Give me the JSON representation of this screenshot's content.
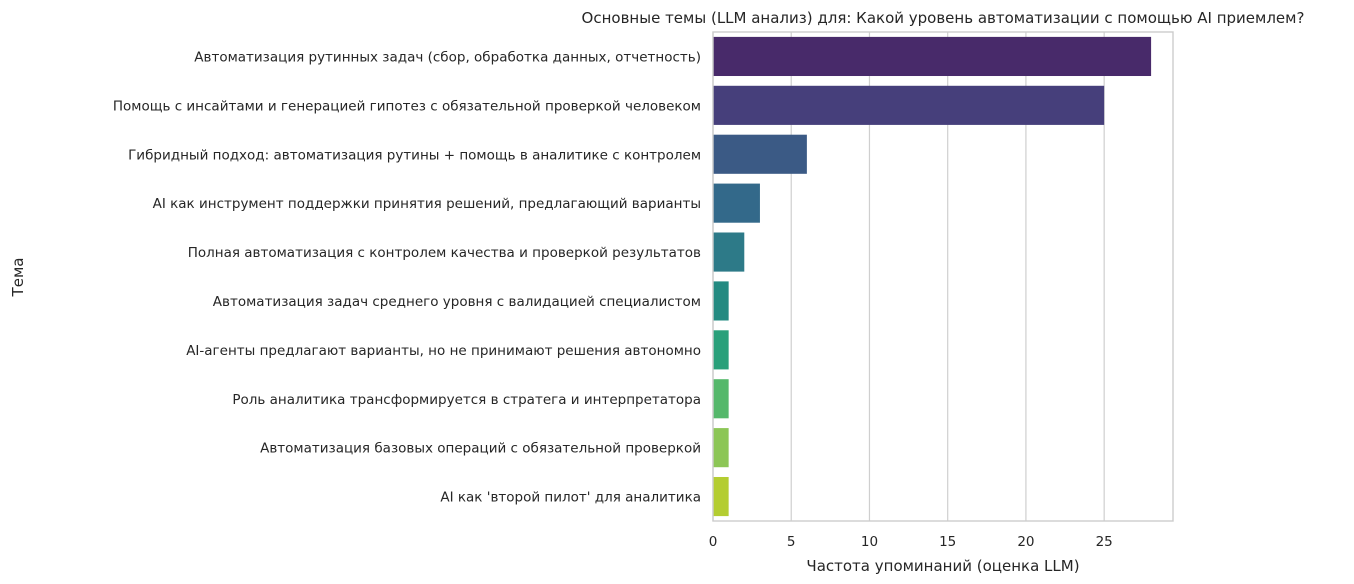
{
  "chart_data": {
    "type": "bar",
    "orientation": "horizontal",
    "title": "Основные темы (LLM анализ) для: Какой уровень автоматизации с помощью AI приемлем?",
    "xlabel": "Частота упоминаний (оценка LLM)",
    "ylabel": "Тема",
    "xlim": [
      0,
      29.4
    ],
    "xticks": [
      "0",
      "5",
      "10",
      "15",
      "20",
      "25"
    ],
    "grid": true,
    "legend": "none",
    "categories": [
      "Автоматизация рутинных задач (сбор, обработка данных, отчетность)",
      "Помощь с инсайтами и генерацией гипотез с обязательной проверкой человеком",
      "Гибридный подход: автоматизация рутины + помощь в аналитике с контролем",
      "AI как инструмент поддержки принятия решений, предлагающий варианты",
      "Полная автоматизация с контролем качества и проверкой результатов",
      "Автоматизация задач среднего уровня с валидацией специалистом",
      "AI-агенты предлагают варианты, но не принимают решения автономно",
      "Роль аналитика трансформируется в стратега и интерпретатора",
      "Автоматизация базовых операций с обязательной проверкой",
      "AI как 'второй пилот' для аналитика"
    ],
    "values": [
      28,
      25,
      6,
      3,
      2,
      1,
      1,
      1,
      1,
      1
    ],
    "colors": [
      "#482a6a",
      "#463f7b",
      "#3b5a85",
      "#33698a",
      "#2d7a88",
      "#238a81",
      "#29a07a",
      "#55b86b",
      "#8cc656",
      "#b4cd31"
    ]
  }
}
